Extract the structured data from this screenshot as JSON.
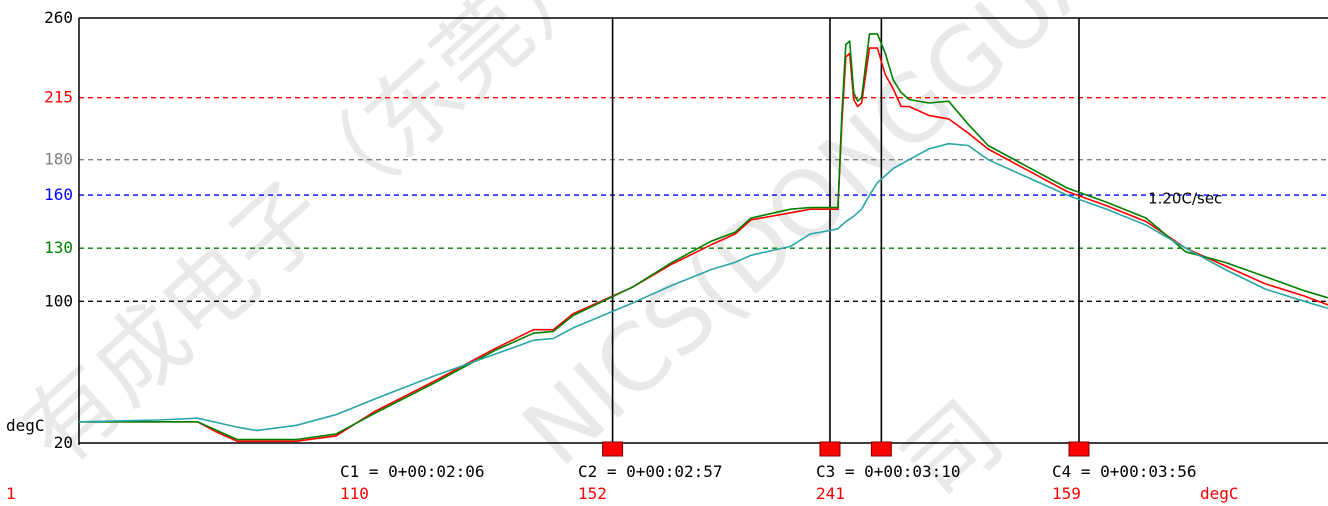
{
  "chart_data": {
    "type": "line",
    "ylim": [
      20,
      260
    ],
    "x_time_range_sec": [
      0,
      316
    ],
    "unit_label": "degC",
    "y_ticks": [
      {
        "value": 260,
        "label": "260",
        "color": "#000000"
      },
      {
        "value": 215,
        "label": "215",
        "color": "#ff0000"
      },
      {
        "value": 180,
        "label": "180",
        "color": "#808080"
      },
      {
        "value": 160,
        "label": "160",
        "color": "#0000ff"
      },
      {
        "value": 130,
        "label": "130",
        "color": "#008000"
      },
      {
        "value": 100,
        "label": "100",
        "color": "#000000"
      },
      {
        "value": 20,
        "label": "20",
        "color": "#000000"
      }
    ],
    "reference_lines": [
      {
        "value": 215,
        "color": "#ff0000",
        "style": "dashed"
      },
      {
        "value": 180,
        "color": "#808080",
        "style": "dashed"
      },
      {
        "value": 160,
        "color": "#0000ff",
        "style": "dashed"
      },
      {
        "value": 130,
        "color": "#008000",
        "style": "dashed"
      },
      {
        "value": 100,
        "color": "#000000",
        "style": "dashed"
      }
    ],
    "series": [
      {
        "color": "#ff0000",
        "x": [
          0,
          30,
          35,
          40,
          45,
          55,
          65,
          75,
          90,
          105,
          115,
          120,
          125,
          140,
          150,
          160,
          166,
          170,
          180,
          185,
          190,
          192,
          193,
          194,
          195,
          196,
          197,
          198,
          200,
          202,
          204,
          206,
          208,
          210,
          215,
          220,
          225,
          230,
          240,
          250,
          260,
          270,
          280,
          290,
          300,
          310,
          316
        ],
        "y": [
          32,
          32,
          26,
          21,
          21,
          21,
          24,
          38,
          55,
          73,
          84,
          84,
          93,
          108,
          121,
          132,
          138,
          146,
          150,
          152,
          152,
          152,
          200,
          238,
          240,
          214,
          210,
          212,
          243,
          243,
          228,
          220,
          210,
          210,
          205,
          203,
          195,
          186,
          174,
          162,
          154,
          145,
          130,
          120,
          110,
          103,
          98
        ]
      },
      {
        "color": "#008000",
        "x": [
          0,
          30,
          35,
          40,
          45,
          55,
          65,
          75,
          90,
          105,
          115,
          120,
          125,
          140,
          150,
          160,
          166,
          170,
          180,
          185,
          190,
          192,
          193,
          194,
          195,
          196,
          197,
          198,
          200,
          202,
          204,
          206,
          208,
          210,
          215,
          220,
          225,
          230,
          240,
          250,
          260,
          270,
          280,
          290,
          300,
          310,
          316
        ],
        "y": [
          32,
          32,
          27,
          22,
          22,
          22,
          25,
          37,
          54,
          72,
          82,
          83,
          92,
          108,
          122,
          134,
          139,
          147,
          152,
          153,
          153,
          153,
          205,
          245,
          247,
          218,
          213,
          215,
          251,
          251,
          240,
          225,
          218,
          214,
          212,
          213,
          200,
          188,
          176,
          164,
          156,
          147,
          128,
          122,
          114,
          106,
          102
        ]
      },
      {
        "color": "#2aa6a6",
        "x": [
          0,
          20,
          30,
          40,
          45,
          55,
          65,
          75,
          90,
          105,
          115,
          120,
          125,
          140,
          150,
          160,
          166,
          170,
          180,
          185,
          190,
          192,
          194,
          196,
          198,
          200,
          202,
          206,
          210,
          215,
          220,
          225,
          230,
          240,
          250,
          260,
          270,
          280,
          290,
          300,
          310,
          316
        ],
        "y": [
          32,
          33,
          34,
          29,
          27,
          30,
          36,
          45,
          58,
          70,
          78,
          79,
          85,
          99,
          109,
          118,
          122,
          126,
          131,
          138,
          140,
          141,
          145,
          148,
          152,
          160,
          167,
          175,
          180,
          186,
          189,
          188,
          180,
          170,
          160,
          152,
          143,
          130,
          118,
          107,
          100,
          96
        ]
      }
    ],
    "cursors": [
      {
        "label": "C1 = 0+00:02:06",
        "time_sec": 135,
        "value": "110",
        "value_color": "#ff0000"
      },
      {
        "label": "C2 = 0+00:02:57",
        "time_sec": 190,
        "value": "152",
        "value_color": "#ff0000"
      },
      {
        "label": "C3 = 0+00:03:10",
        "time_sec": 203,
        "value": "241",
        "value_color": "#ff0000"
      },
      {
        "label": "C4 = 0+00:03:56",
        "time_sec": 253,
        "value": "159",
        "value_color": "#ff0000"
      }
    ],
    "vertical_lines_sec": [
      135,
      190,
      203,
      253
    ],
    "annotation": {
      "text": "1.20C/sec",
      "time_sec": 272,
      "value": 158
    },
    "footer_channel": {
      "text": "1",
      "color": "#ff0000"
    },
    "footer_unit": {
      "text": "degC",
      "color": "#ff0000"
    }
  },
  "watermark": {
    "segments": [
      "有成电子（东莞）有限",
      "NICS(DONGGUAN)CO.,",
      "司"
    ],
    "color": "#cfcfcf"
  }
}
